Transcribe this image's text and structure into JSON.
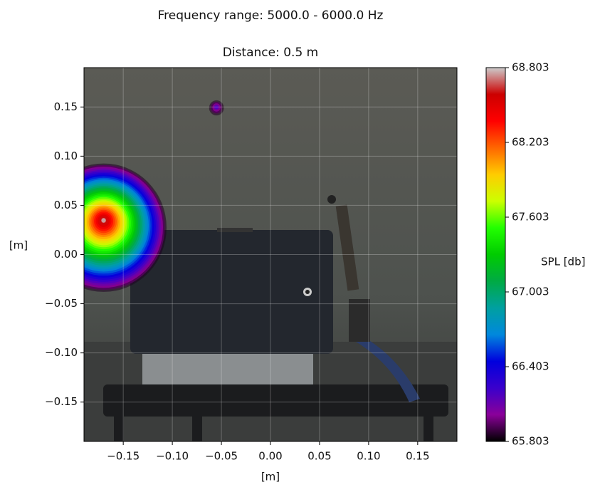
{
  "chart_data": {
    "type": "acoustic-map",
    "title": "Frequency range: 5000.0 - 6000.0 Hz",
    "subtitle": "Distance: 0.5 m",
    "xlabel": "[m]",
    "ylabel": "[m]",
    "colorbar_label": "SPL [db]",
    "x": [
      -0.17,
      -0.055
    ],
    "y": [
      0.035,
      0.15
    ],
    "values": [
      68.8,
      66.2
    ],
    "xlim": [
      -0.19,
      0.19
    ],
    "ylim": [
      -0.19,
      0.19
    ],
    "xticks": [
      {
        "value": -0.15,
        "label": "−0.15"
      },
      {
        "value": -0.1,
        "label": "−0.10"
      },
      {
        "value": -0.05,
        "label": "−0.05"
      },
      {
        "value": 0,
        "label": "0.00"
      },
      0.05,
      {
        "value": 0.1,
        "label": "0.10"
      },
      0.15
    ],
    "yticks": [
      {
        "value": -0.15,
        "label": "−0.15"
      },
      {
        "value": -0.1,
        "label": "−0.10"
      },
      {
        "value": -0.05,
        "label": "−0.05"
      },
      {
        "value": 0,
        "label": "0.00"
      },
      0.05,
      {
        "value": 0.1,
        "label": "0.10"
      },
      0.15
    ],
    "clim": [
      65.803,
      68.803
    ],
    "cticks": [
      65.803,
      66.403,
      67.003,
      67.603,
      68.203,
      68.803
    ],
    "colormap": [
      "#000000",
      "#8a0099",
      "#3a00cc",
      "#0000dd",
      "#0088dd",
      "#00a0a0",
      "#00aa44",
      "#00cc00",
      "#22ff00",
      "#ccff00",
      "#ffcc00",
      "#ff6600",
      "#ff0000",
      "#cc0000",
      "#cccccc"
    ],
    "grid": true
  }
}
